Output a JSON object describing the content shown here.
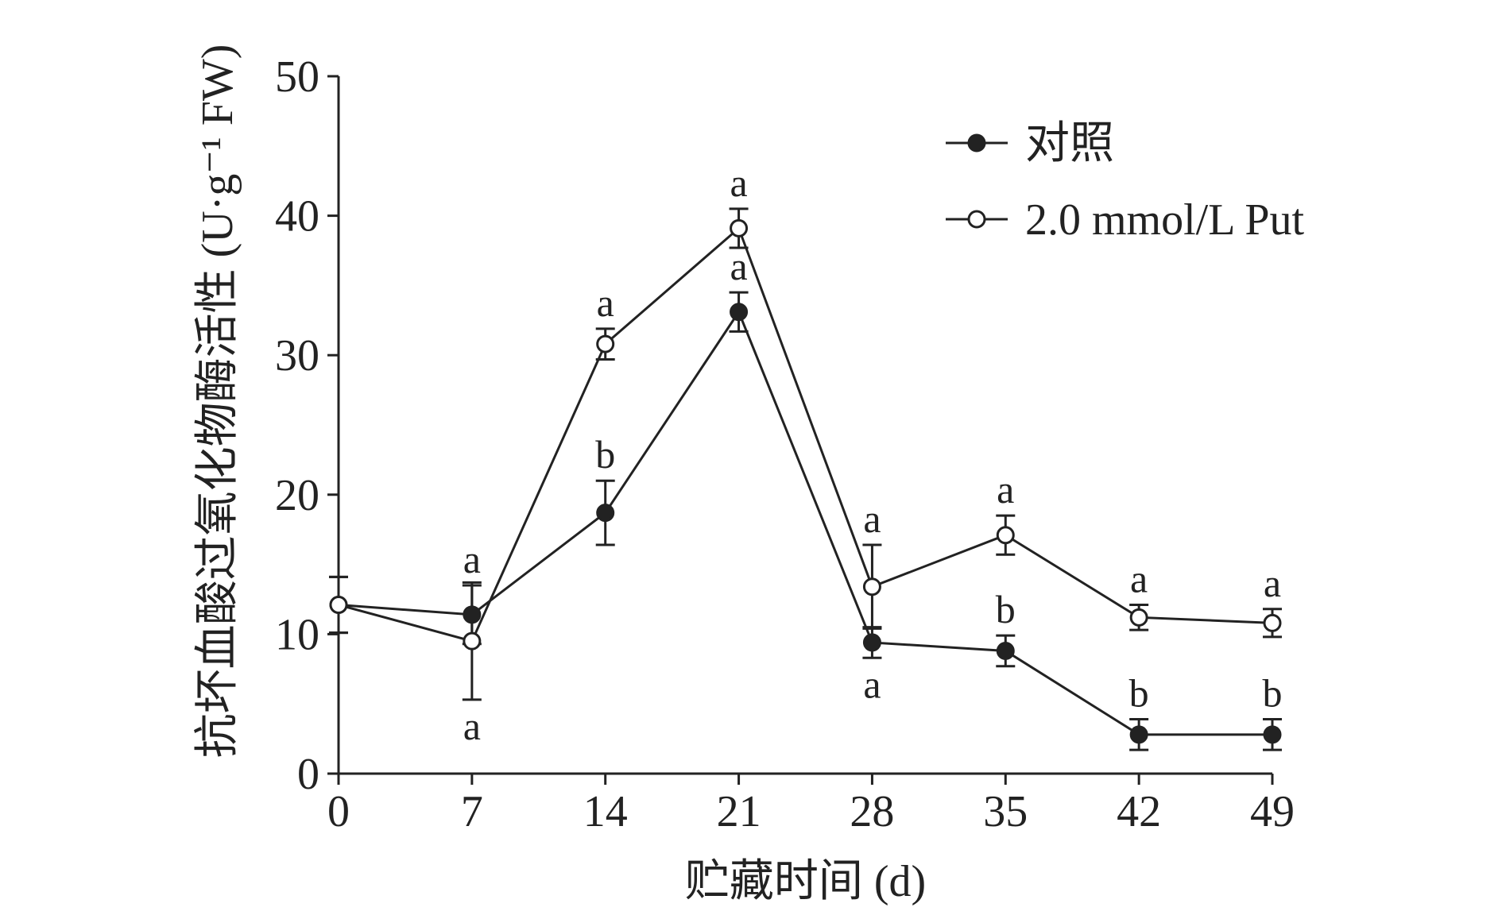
{
  "chart_data": {
    "type": "line",
    "xlabel": "贮藏时间 (d)",
    "ylabel": "抗坏血酸过氧化物酶活性 (U·g⁻¹ FW)",
    "x": [
      0,
      7,
      14,
      21,
      28,
      35,
      42,
      49
    ],
    "xlim": [
      0,
      49
    ],
    "ylim": [
      0,
      50
    ],
    "x_ticks": [
      "0",
      "7",
      "14",
      "21",
      "28",
      "35",
      "42",
      "49"
    ],
    "y_ticks": [
      "0",
      "10",
      "20",
      "30",
      "40",
      "50"
    ],
    "grid": false,
    "legend_position": "top-right",
    "series": [
      {
        "name": "对照",
        "marker": "filled-circle",
        "color": "#222222",
        "values": [
          12.1,
          11.4,
          18.7,
          33.1,
          9.4,
          8.8,
          2.8,
          2.8
        ],
        "errors": [
          2.0,
          2.1,
          2.3,
          1.4,
          1.1,
          1.1,
          1.1,
          1.1
        ],
        "labels": [
          "",
          "a",
          "b",
          "a",
          "a",
          "b",
          "b",
          "b"
        ],
        "label_side": [
          "",
          "above",
          "above",
          "above",
          "below",
          "above",
          "above",
          "above"
        ]
      },
      {
        "name": "2.0 mmol/L Put",
        "marker": "open-circle",
        "color": "#222222",
        "values": [
          12.1,
          9.5,
          30.8,
          39.1,
          13.4,
          17.1,
          11.2,
          10.8
        ],
        "errors": [
          2.0,
          4.2,
          1.1,
          1.4,
          3.0,
          1.4,
          0.9,
          1.0
        ],
        "labels": [
          "",
          "a",
          "a",
          "a",
          "a",
          "a",
          "a",
          "a"
        ],
        "label_side": [
          "",
          "below",
          "above",
          "above",
          "above",
          "above",
          "above",
          "above"
        ]
      }
    ]
  }
}
